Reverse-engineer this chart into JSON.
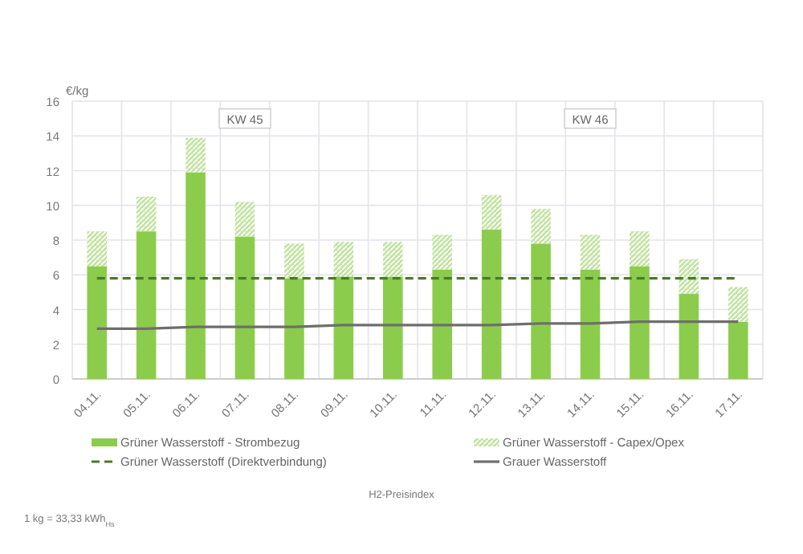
{
  "chart_data": {
    "type": "bar",
    "stacked": true,
    "ylabel": "€/kg",
    "categories": [
      "04.11.",
      "05.11.",
      "06.11.",
      "07.11.",
      "08.11.",
      "09.11.",
      "10.11.",
      "11.11.",
      "12.11.",
      "13.11.",
      "14.11.",
      "15.11.",
      "16.11.",
      "17.11."
    ],
    "series": [
      {
        "name": "Grüner Wasserstoff - Strombezug",
        "color": "#8ccc4c",
        "values": [
          6.5,
          8.5,
          11.9,
          8.2,
          5.8,
          5.9,
          5.9,
          6.3,
          8.6,
          7.8,
          6.3,
          6.5,
          4.9,
          3.3
        ]
      },
      {
        "name": "Grüner Wasserstoff - Capex/Opex",
        "color": "#c4e3a4",
        "values": [
          2.0,
          2.0,
          2.0,
          2.0,
          2.0,
          2.0,
          2.0,
          2.0,
          2.0,
          2.0,
          2.0,
          2.0,
          2.0,
          2.0
        ]
      },
      {
        "name": "Grüner Wasserstoff (Direktverbindung)",
        "type": "line",
        "line_style": "dashed",
        "color": "#4a7a2a",
        "values": [
          5.8,
          5.8,
          5.8,
          5.8,
          5.8,
          5.8,
          5.8,
          5.8,
          5.8,
          5.8,
          5.8,
          5.8,
          5.8,
          5.8
        ]
      },
      {
        "name": "Grauer Wasserstoff",
        "type": "line",
        "line_style": "solid",
        "color": "#6e6e6e",
        "values": [
          2.9,
          2.9,
          3.0,
          3.0,
          3.0,
          3.1,
          3.1,
          3.1,
          3.1,
          3.2,
          3.2,
          3.3,
          3.3,
          3.3
        ]
      }
    ],
    "ylim": [
      0,
      16
    ],
    "yticks": [
      0,
      2,
      4,
      6,
      8,
      10,
      12,
      14,
      16
    ],
    "grid": true,
    "legend": "bottom",
    "annotations": [
      {
        "text": "KW 45",
        "x": "07.11.",
        "y": 15
      },
      {
        "text": "KW 46",
        "x": "14.11.",
        "y": 15
      },
      "H2-Preisindex",
      "1 kg = 33,33 kWh$_{Hs}$"
    ]
  }
}
